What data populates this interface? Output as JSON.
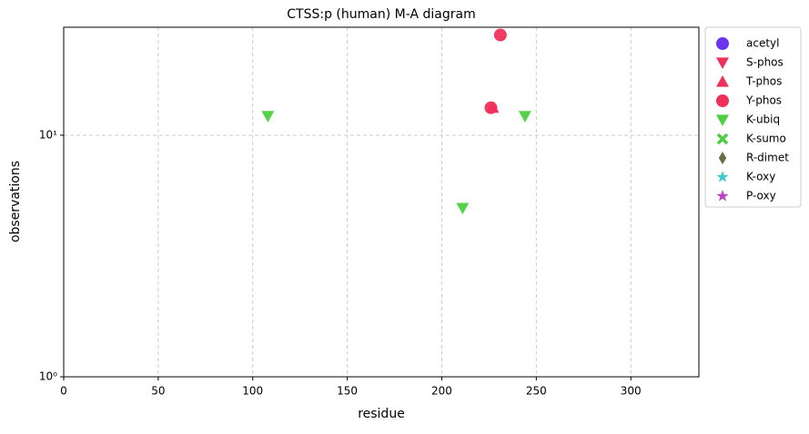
{
  "chart_data": {
    "type": "scatter",
    "title": "CTSS:p (human) M-A diagram",
    "x_label": "residue",
    "y_label": "observations",
    "xlim": [
      0,
      336
    ],
    "xticks": [
      0,
      50,
      100,
      150,
      200,
      250,
      300
    ],
    "ylim": [
      1,
      28
    ],
    "yticks": [
      {
        "value": 1,
        "label": "10⁰"
      },
      {
        "value": 10,
        "label": "10¹"
      }
    ],
    "y_scale": "log",
    "grid": true,
    "legend": "outside-right",
    "series": [
      {
        "name": "acetyl",
        "color": "#6a35f0",
        "marker": "circle",
        "x": [],
        "values": []
      },
      {
        "name": "S-phos",
        "color": "#f0305a",
        "marker": "triangle-down",
        "x": [],
        "values": []
      },
      {
        "name": "T-phos",
        "color": "#f0305a",
        "marker": "triangle-up",
        "x": [
          227
        ],
        "values": [
          13
        ]
      },
      {
        "name": "Y-phos",
        "color": "#f0305a",
        "marker": "circle",
        "x": [
          231,
          226
        ],
        "values": [
          26,
          13
        ]
      },
      {
        "name": "K-ubiq",
        "color": "#4cd040",
        "marker": "triangle-down",
        "x": [
          108,
          211,
          244
        ],
        "values": [
          12,
          5,
          12
        ]
      },
      {
        "name": "K-sumo",
        "color": "#4cd040",
        "marker": "x",
        "x": [],
        "values": []
      },
      {
        "name": "R-dimet",
        "color": "#6b6b45",
        "marker": "diamond",
        "x": [],
        "values": []
      },
      {
        "name": "K-oxy",
        "color": "#40c8d0",
        "marker": "star",
        "x": [],
        "values": []
      },
      {
        "name": "P-oxy",
        "color": "#c040c8",
        "marker": "star",
        "x": [],
        "values": []
      }
    ]
  }
}
